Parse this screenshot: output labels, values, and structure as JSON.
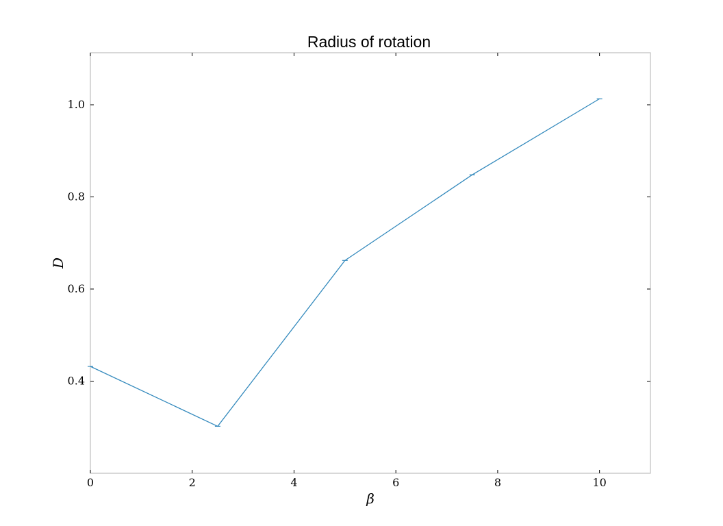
{
  "chart_data": {
    "type": "line",
    "title": "Radius of rotation",
    "xlabel": "β",
    "ylabel": "D",
    "xlim": [
      0,
      11
    ],
    "ylim": [
      0.2,
      1.113
    ],
    "xticks": [
      0,
      2,
      4,
      6,
      8,
      10
    ],
    "xtick_labels": [
      "0",
      "2",
      "4",
      "6",
      "8",
      "10"
    ],
    "yticks": [
      0.4,
      0.6,
      0.8,
      1.0
    ],
    "ytick_labels": [
      "0.4",
      "0.6",
      "0.8",
      "1.0"
    ],
    "grid": false,
    "legend": "none",
    "series": [
      {
        "color": "#348abd",
        "x": [
          0,
          2.5,
          5,
          7.5,
          10
        ],
        "y": [
          0.432,
          0.302,
          0.662,
          0.848,
          1.013
        ],
        "error_bars": true
      }
    ]
  }
}
